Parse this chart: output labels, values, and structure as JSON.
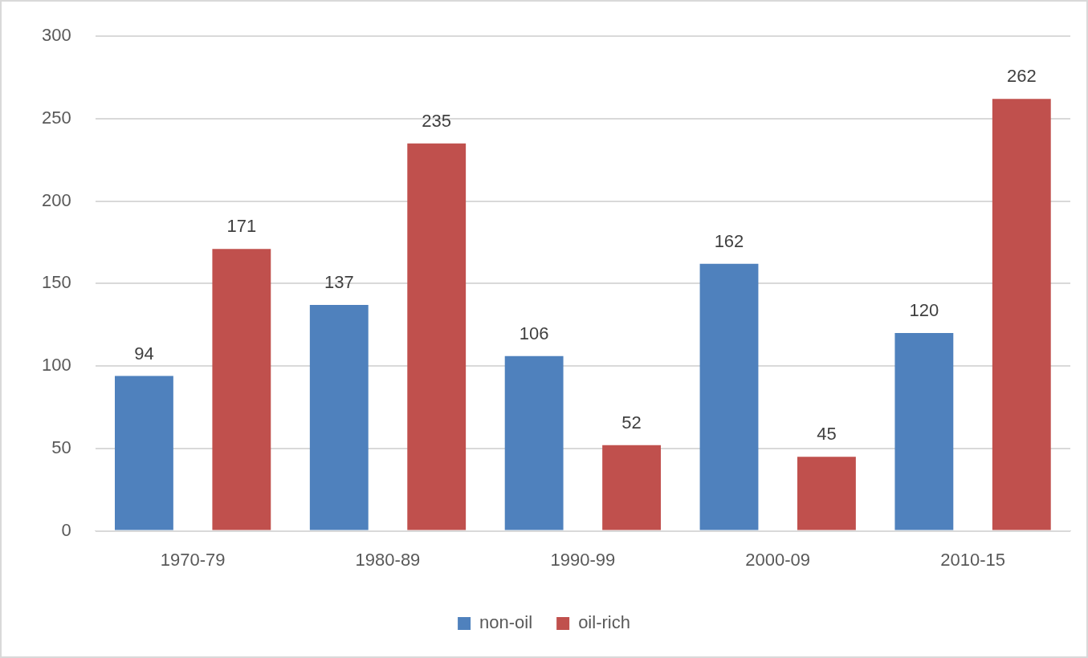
{
  "chart_data": {
    "type": "bar",
    "categories": [
      "1970-79",
      "1980-89",
      "1990-99",
      "2000-09",
      "2010-15"
    ],
    "series": [
      {
        "name": "non-oil",
        "color": "#4f81bd",
        "values": [
          94,
          137,
          106,
          162,
          120
        ]
      },
      {
        "name": "oil-rich",
        "color": "#c0504d",
        "values": [
          171,
          235,
          52,
          45,
          262
        ]
      }
    ],
    "ylim": [
      0,
      300
    ],
    "yticks": [
      0,
      50,
      100,
      150,
      200,
      250,
      300
    ],
    "grid": "y",
    "legend": "bottom",
    "data_labels": true
  }
}
